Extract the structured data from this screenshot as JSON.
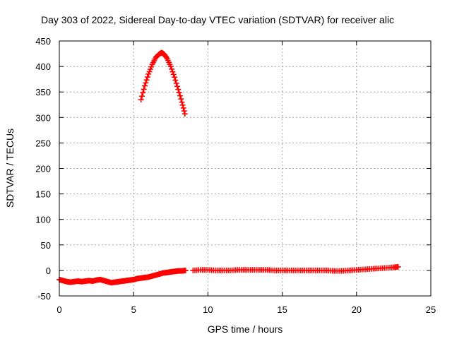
{
  "chart_data": {
    "type": "scatter",
    "title": "Day 303 of 2022, Sidereal Day-to-day VTEC variation (SDTVAR) for receiver alic",
    "xlabel": "GPS time / hours",
    "ylabel": "SDTVAR / TECUs",
    "xlim": [
      0,
      25
    ],
    "ylim": [
      -50,
      450
    ],
    "x_ticks": [
      0,
      5,
      10,
      15,
      20,
      25
    ],
    "y_ticks": [
      -50,
      0,
      50,
      100,
      150,
      200,
      250,
      300,
      350,
      400,
      450
    ],
    "x_tick_labels": [
      "0",
      "5",
      "10",
      "15",
      "20",
      "25"
    ],
    "y_tick_labels": [
      "-50",
      "0",
      "50",
      "100",
      "150",
      "200",
      "250",
      "300",
      "350",
      "400",
      "450"
    ],
    "grid": true,
    "marker": "+",
    "color": "#ff0000",
    "series": [
      {
        "name": "SDTVAR",
        "segments": [
          {
            "x": [
              0.0,
              0.25,
              0.5,
              0.75,
              1.0,
              1.25,
              1.5,
              1.75,
              2.0,
              2.25,
              2.5,
              2.75,
              3.0,
              3.25,
              3.5,
              3.75,
              4.0,
              4.25,
              4.5,
              4.75,
              5.0,
              5.25,
              5.5,
              5.75,
              6.0,
              6.25,
              6.5,
              6.75,
              7.0,
              7.25,
              7.5,
              7.75,
              8.0,
              8.25,
              8.5
            ],
            "y": [
              -18,
              -20,
              -22,
              -23,
              -22,
              -21,
              -22,
              -21,
              -20,
              -21,
              -19,
              -18,
              -20,
              -22,
              -24,
              -23,
              -22,
              -21,
              -20,
              -19,
              -18,
              -16,
              -15,
              -14,
              -13,
              -11,
              -9,
              -7,
              -5,
              -4,
              -3,
              -2,
              -1,
              -1,
              0
            ]
          },
          {
            "x": [
              9.0,
              9.5,
              10.0,
              10.5,
              11.0,
              11.5,
              12.0,
              12.5,
              13.0,
              13.5,
              14.0,
              14.5,
              15.0,
              15.5,
              16.0,
              16.5,
              17.0,
              17.5,
              18.0,
              18.5,
              19.0,
              19.5,
              20.0,
              20.5,
              21.0,
              21.5,
              22.0,
              22.5,
              22.8
            ],
            "y": [
              0,
              1,
              1,
              0,
              0,
              0,
              1,
              1,
              1,
              1,
              1,
              0,
              0,
              0,
              0,
              0,
              0,
              0,
              0,
              -1,
              -1,
              0,
              1,
              2,
              3,
              4,
              5,
              6,
              7
            ]
          },
          {
            "x": [
              5.5,
              5.75,
              6.0,
              6.25,
              6.5,
              6.75,
              6.9,
              7.05,
              7.25,
              7.5,
              7.75,
              8.0,
              8.25,
              8.45
            ],
            "y": [
              335,
              362,
              385,
              404,
              418,
              425,
              427,
              424,
              416,
              400,
              379,
              355,
              330,
              307
            ]
          }
        ]
      }
    ]
  }
}
